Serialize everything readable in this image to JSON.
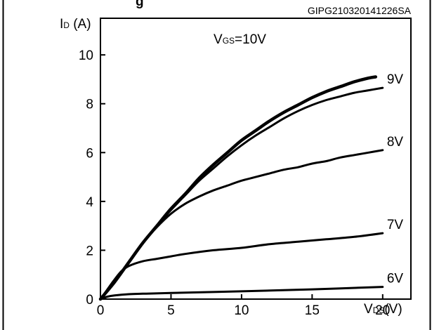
{
  "header_fragment": "g",
  "reference_code": "GIPG210320141226SA",
  "chart_data": {
    "type": "line",
    "xlabel": {
      "main": "V",
      "sub": "DS",
      "unit": "(V)"
    },
    "ylabel": {
      "main": "I",
      "sub": "D",
      "unit": " (A)"
    },
    "xlim": [
      0,
      22
    ],
    "ylim": [
      0,
      11.5
    ],
    "xticks": [
      0,
      5,
      10,
      15,
      20
    ],
    "yticks": [
      0,
      2,
      4,
      6,
      8,
      10
    ],
    "annotation": {
      "main": "V",
      "sub": "GS",
      "rest": "=10V"
    },
    "series": [
      {
        "name": "10V",
        "points": [
          [
            0,
            0
          ],
          [
            1,
            0.7
          ],
          [
            2,
            1.5
          ],
          [
            3,
            2.3
          ],
          [
            4,
            3.0
          ],
          [
            5,
            3.7
          ],
          [
            6,
            4.3
          ],
          [
            7,
            4.95
          ],
          [
            8,
            5.5
          ],
          [
            9,
            6.0
          ],
          [
            10,
            6.5
          ],
          [
            11,
            6.9
          ],
          [
            12,
            7.3
          ],
          [
            13,
            7.65
          ],
          [
            14,
            7.95
          ],
          [
            15,
            8.25
          ],
          [
            16,
            8.5
          ],
          [
            17,
            8.7
          ],
          [
            18,
            8.9
          ],
          [
            19,
            9.05
          ],
          [
            19.5,
            9.1
          ]
        ]
      },
      {
        "name": "9V",
        "label": "9V",
        "points": [
          [
            0,
            0
          ],
          [
            1,
            0.7
          ],
          [
            2,
            1.5
          ],
          [
            3,
            2.3
          ],
          [
            4,
            3.0
          ],
          [
            5,
            3.65
          ],
          [
            6,
            4.25
          ],
          [
            7,
            4.85
          ],
          [
            8,
            5.35
          ],
          [
            9,
            5.85
          ],
          [
            10,
            6.3
          ],
          [
            11,
            6.7
          ],
          [
            12,
            7.05
          ],
          [
            13,
            7.4
          ],
          [
            14,
            7.7
          ],
          [
            15,
            7.95
          ],
          [
            16,
            8.15
          ],
          [
            17,
            8.3
          ],
          [
            18,
            8.45
          ],
          [
            19,
            8.55
          ],
          [
            20,
            8.65
          ]
        ]
      },
      {
        "name": "8V",
        "label": "8V",
        "points": [
          [
            0,
            0
          ],
          [
            1,
            0.7
          ],
          [
            2,
            1.5
          ],
          [
            3,
            2.3
          ],
          [
            4,
            2.95
          ],
          [
            5,
            3.5
          ],
          [
            6,
            3.9
          ],
          [
            7,
            4.2
          ],
          [
            8,
            4.45
          ],
          [
            9,
            4.65
          ],
          [
            10,
            4.85
          ],
          [
            11,
            5.0
          ],
          [
            12,
            5.15
          ],
          [
            13,
            5.3
          ],
          [
            14,
            5.4
          ],
          [
            15,
            5.55
          ],
          [
            16,
            5.65
          ],
          [
            17,
            5.8
          ],
          [
            18,
            5.9
          ],
          [
            19,
            6.0
          ],
          [
            20,
            6.1
          ]
        ]
      },
      {
        "name": "7V",
        "label": "7V",
        "points": [
          [
            0,
            0
          ],
          [
            0.5,
            0.4
          ],
          [
            1,
            0.8
          ],
          [
            1.5,
            1.15
          ],
          [
            2,
            1.35
          ],
          [
            3,
            1.55
          ],
          [
            4,
            1.65
          ],
          [
            5,
            1.75
          ],
          [
            6,
            1.85
          ],
          [
            8,
            2.0
          ],
          [
            10,
            2.1
          ],
          [
            12,
            2.25
          ],
          [
            14,
            2.35
          ],
          [
            16,
            2.45
          ],
          [
            18,
            2.55
          ],
          [
            20,
            2.7
          ]
        ]
      },
      {
        "name": "6V",
        "label": "6V",
        "points": [
          [
            0,
            0
          ],
          [
            0.5,
            0.1
          ],
          [
            1,
            0.15
          ],
          [
            2,
            0.2
          ],
          [
            3,
            0.22
          ],
          [
            5,
            0.25
          ],
          [
            10,
            0.32
          ],
          [
            15,
            0.4
          ],
          [
            20,
            0.5
          ]
        ]
      }
    ]
  }
}
